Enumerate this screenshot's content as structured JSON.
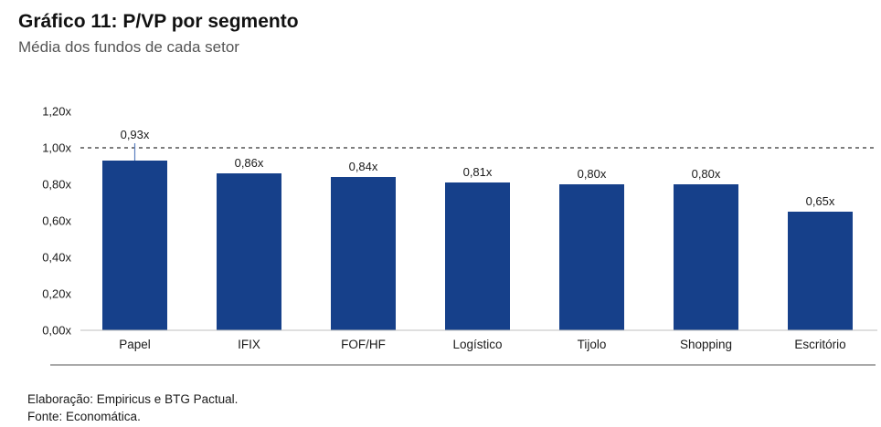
{
  "header": {
    "title": "Gráfico 11: P/VP por segmento",
    "subtitle": "Média dos fundos de cada setor"
  },
  "chart_data": {
    "type": "bar",
    "title": "Gráfico 11: P/VP por segmento",
    "subtitle": "Média dos fundos de cada setor",
    "categories": [
      "Papel",
      "IFIX",
      "FOF/HF",
      "Logístico",
      "Tijolo",
      "Shopping",
      "Escritório"
    ],
    "values": [
      0.93,
      0.86,
      0.84,
      0.81,
      0.8,
      0.8,
      0.65
    ],
    "data_labels": [
      "0,93x",
      "0,86x",
      "0,84x",
      "0,81x",
      "0,80x",
      "0,80x",
      "0,65x"
    ],
    "ylim": [
      0,
      1.2
    ],
    "yticks": [
      "0,00x",
      "0,20x",
      "0,40x",
      "0,60x",
      "0,80x",
      "1,00x",
      "1,20x"
    ],
    "reference_line": 1.0,
    "grid": false,
    "legend": "none",
    "bar_color": "#16408a"
  },
  "footer": {
    "line1": "Elaboração: Empiricus e BTG Pactual.",
    "line2": "Fonte: Economática."
  }
}
